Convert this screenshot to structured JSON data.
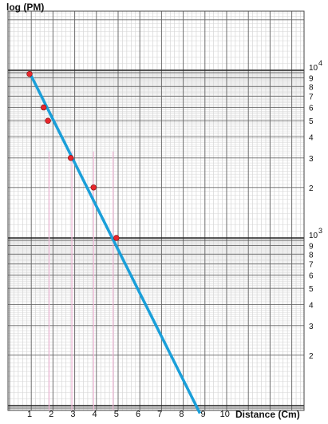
{
  "chart_data": {
    "type": "scatter",
    "title": "",
    "ylabel": "log (PM)",
    "xlabel": "Distance (Cm)",
    "y_scale": "log",
    "ylim": [
      100,
      12000
    ],
    "xlim": [
      0,
      10.5
    ],
    "grid": true,
    "x_tick_labels": [
      "1",
      "2",
      "3",
      "4",
      "5",
      "6",
      "7",
      "8",
      "9",
      "10"
    ],
    "y_tick_labels_upper": [
      "9",
      "8",
      "7",
      "6",
      "5",
      "4",
      "3",
      "2"
    ],
    "y_tick_labels_lower": [
      "9",
      "8",
      "7",
      "6",
      "5",
      "4",
      "3",
      "2"
    ],
    "y_decade_labels": [
      {
        "base": "10",
        "exp": "4",
        "value": 10000
      },
      {
        "base": "10",
        "exp": "3",
        "value": 1000
      }
    ],
    "points": [
      {
        "x": 1.0,
        "y": 9500
      },
      {
        "x": 1.65,
        "y": 6000
      },
      {
        "x": 1.85,
        "y": 5000
      },
      {
        "x": 2.9,
        "y": 3000
      },
      {
        "x": 3.95,
        "y": 2000
      },
      {
        "x": 5.0,
        "y": 1000
      }
    ],
    "fit_line": {
      "x": [
        1.0,
        8.85
      ],
      "y": [
        9700,
        90
      ]
    },
    "vertical_markers_x": [
      1.9,
      2.95,
      3.95,
      4.85
    ],
    "colors": {
      "point": "#e8262c",
      "line": "#1a9fd9",
      "marker": "#f0b6d6",
      "grid": "#9a9a9a"
    }
  }
}
